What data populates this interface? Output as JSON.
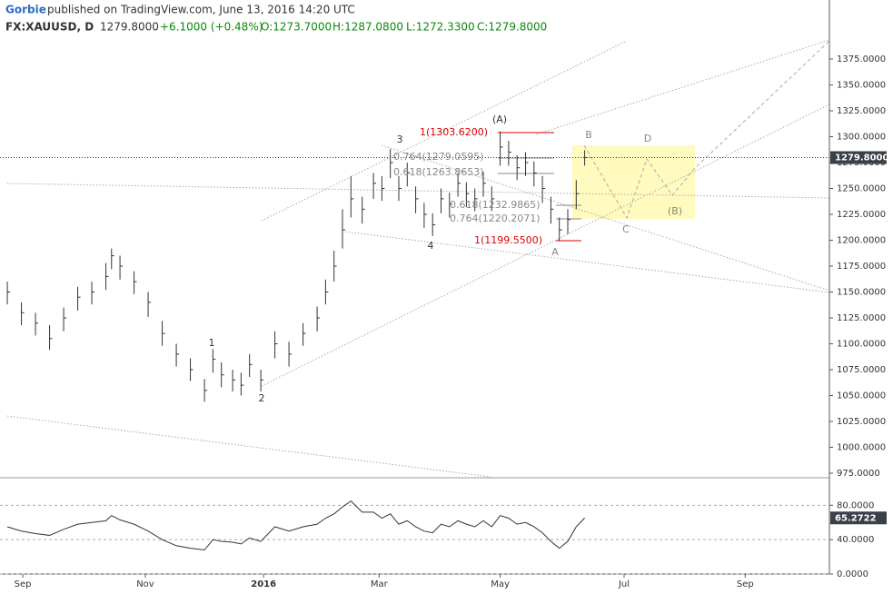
{
  "header": {
    "author": "Gorbie",
    "published": "published on TradingView.com, June 13, 2016 14:20 UTC",
    "symbol": "FX:XAUUSD, D",
    "last": "1279.8000",
    "change": "+6.1000 (+0.48%)",
    "open": "O:1273.7000",
    "high": "H:1287.0800",
    "low": "L:1272.3300",
    "close": "C:1279.8000"
  },
  "chart_data": [
    {
      "type": "ohlc",
      "color": "#333333",
      "x": [
        0,
        5,
        10,
        15,
        20,
        25,
        30,
        35,
        37,
        40,
        45,
        50,
        55,
        60,
        65,
        70,
        73,
        76,
        80,
        83,
        86,
        90,
        95,
        100,
        105,
        110,
        113,
        116,
        119,
        122,
        126,
        130,
        133,
        136,
        139,
        142,
        145,
        148,
        151,
        154,
        157,
        160,
        163,
        166,
        169,
        172,
        175,
        178,
        181,
        184,
        187,
        190,
        193,
        196,
        199,
        202,
        205
      ],
      "high": [
        1160,
        1140,
        1130,
        1118,
        1135,
        1155,
        1160,
        1178,
        1192,
        1185,
        1170,
        1150,
        1122,
        1100,
        1086,
        1066,
        1095,
        1082,
        1075,
        1072,
        1090,
        1075,
        1112,
        1102,
        1120,
        1136,
        1162,
        1190,
        1230,
        1262,
        1242,
        1265,
        1262,
        1288,
        1262,
        1275,
        1252,
        1236,
        1226,
        1250,
        1246,
        1265,
        1256,
        1250,
        1266,
        1252,
        1305,
        1296,
        1282,
        1285,
        1276,
        1262,
        1242,
        1222,
        1230,
        1258,
        1287
      ],
      "low": [
        1138,
        1118,
        1108,
        1094,
        1112,
        1132,
        1138,
        1152,
        1172,
        1162,
        1148,
        1126,
        1098,
        1078,
        1064,
        1044,
        1072,
        1058,
        1054,
        1050,
        1068,
        1054,
        1086,
        1078,
        1098,
        1112,
        1138,
        1160,
        1192,
        1222,
        1216,
        1240,
        1238,
        1260,
        1238,
        1252,
        1226,
        1212,
        1204,
        1226,
        1222,
        1242,
        1232,
        1228,
        1242,
        1228,
        1272,
        1272,
        1258,
        1262,
        1252,
        1236,
        1216,
        1199,
        1206,
        1230,
        1272
      ],
      "close": [
        1150,
        1130,
        1120,
        1105,
        1125,
        1145,
        1150,
        1165,
        1185,
        1175,
        1160,
        1140,
        1110,
        1090,
        1075,
        1055,
        1085,
        1070,
        1065,
        1060,
        1080,
        1065,
        1100,
        1090,
        1110,
        1125,
        1150,
        1175,
        1210,
        1240,
        1230,
        1255,
        1250,
        1275,
        1250,
        1265,
        1240,
        1225,
        1215,
        1240,
        1235,
        1255,
        1245,
        1240,
        1255,
        1240,
        1290,
        1285,
        1270,
        1275,
        1265,
        1250,
        1230,
        1210,
        1220,
        1245,
        1279.8
      ],
      "xlim": [
        -2.6,
        291.9
      ],
      "xticks": [
        {
          "value": 5.5,
          "label": "Sep"
        },
        {
          "value": 49,
          "label": "Nov"
        },
        {
          "value": 91,
          "label": "2016"
        },
        {
          "value": 132,
          "label": "Mar"
        },
        {
          "value": 175,
          "label": "May"
        },
        {
          "value": 219,
          "label": "Jul"
        },
        {
          "value": 262,
          "label": "Sep"
        }
      ],
      "ylim": [
        971.5,
        1432
      ],
      "yticks": [
        {
          "value": 975,
          "label": "975.0000"
        },
        {
          "value": 1000,
          "label": "1000.0000"
        },
        {
          "value": 1025,
          "label": "1025.0000"
        },
        {
          "value": 1050,
          "label": "1050.0000"
        },
        {
          "value": 1075,
          "label": "1075.0000"
        },
        {
          "value": 1100,
          "label": "1100.0000"
        },
        {
          "value": 1125,
          "label": "1125.0000"
        },
        {
          "value": 1150,
          "label": "1150.0000"
        },
        {
          "value": 1175,
          "label": "1175.0000"
        },
        {
          "value": 1200,
          "label": "1200.0000"
        },
        {
          "value": 1225,
          "label": "1225.0000"
        },
        {
          "value": 1250,
          "label": "1250.0000"
        },
        {
          "value": 1275,
          "label": "1275.0000"
        },
        {
          "value": 1300,
          "label": "1300.0000"
        },
        {
          "value": 1325,
          "label": "1325.0000"
        },
        {
          "value": 1350,
          "label": "1350.0000"
        },
        {
          "value": 1375,
          "label": "1375.0000"
        }
      ],
      "last_price": {
        "value": 1279.8,
        "label": "1279.8000"
      },
      "annotations": [
        "1(1303.6200)",
        "0.764(1279.0595)",
        "0.618(1263.8653)",
        "0.618(1232.9865)",
        "0.764(1220.2071)",
        "1(1199.5500)",
        "(A)",
        "3",
        "4",
        "1",
        "2",
        "B",
        "C",
        "D",
        "(B)",
        "A"
      ]
    },
    {
      "type": "line",
      "color": "#333333",
      "x": [
        0,
        5,
        10,
        15,
        20,
        25,
        30,
        35,
        37,
        40,
        45,
        50,
        55,
        60,
        65,
        70,
        73,
        76,
        80,
        83,
        86,
        90,
        95,
        100,
        105,
        110,
        113,
        116,
        119,
        122,
        126,
        130,
        133,
        136,
        139,
        142,
        145,
        148,
        151,
        154,
        157,
        160,
        163,
        166,
        169,
        172,
        175,
        178,
        181,
        184,
        187,
        190,
        193,
        196,
        199,
        202,
        205
      ],
      "values": [
        55,
        50,
        47,
        45,
        52,
        58,
        60,
        62,
        68,
        63,
        58,
        50,
        40,
        33,
        30,
        28,
        40,
        38,
        37,
        35,
        42,
        38,
        55,
        50,
        55,
        58,
        65,
        70,
        78,
        85,
        72,
        72,
        65,
        70,
        58,
        62,
        55,
        50,
        48,
        58,
        55,
        62,
        58,
        55,
        62,
        55,
        68,
        65,
        58,
        60,
        55,
        48,
        38,
        30,
        38,
        55,
        65.2722
      ],
      "xlim": [
        -2.6,
        291.9
      ],
      "ylim": [
        0,
        111
      ],
      "yticks": [
        {
          "value": 0,
          "label": "0.0000"
        },
        {
          "value": 40,
          "label": "40.0000"
        },
        {
          "value": 80,
          "label": "80.0000"
        }
      ],
      "last_value": {
        "value": 65.2722,
        "label": "65.2722"
      }
    }
  ]
}
